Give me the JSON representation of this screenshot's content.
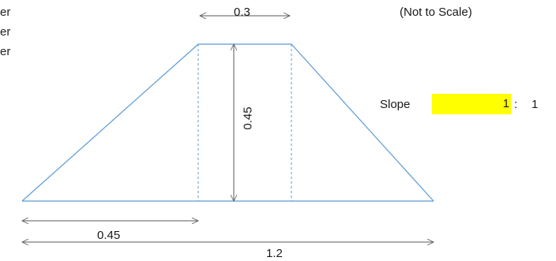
{
  "left_cut_text": [
    "er",
    "er",
    "er"
  ],
  "note": "(Not to Scale)",
  "dimensions": {
    "top_width": "0.3",
    "height": "0.45",
    "bottom_left": "0.45",
    "total_width": "1.2"
  },
  "slope": {
    "label": "Slope",
    "value": "1",
    "separator": ":",
    "run": "1"
  },
  "colors": {
    "outline": "#5b9bd5",
    "arrow": "#595959",
    "highlight": "#ffff00"
  }
}
